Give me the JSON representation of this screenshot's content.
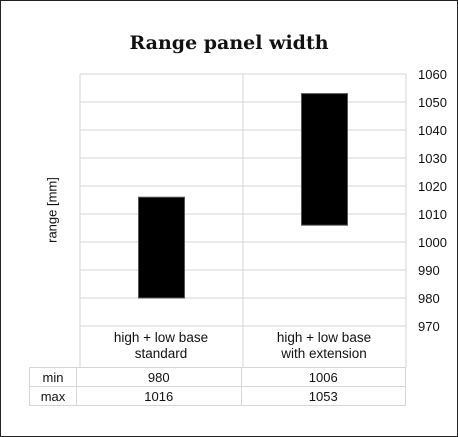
{
  "chart_data": {
    "type": "floating-bar",
    "title": "Range panel width",
    "ylabel": "range [mm]",
    "ylim": [
      970,
      1060
    ],
    "yticks": [
      970,
      980,
      990,
      1000,
      1010,
      1020,
      1030,
      1040,
      1050,
      1060
    ],
    "grid": true,
    "y_axis_side": "right",
    "bar_color": "#000000",
    "categories": [
      {
        "label_line1": "high + low base",
        "label_line2": "standard",
        "min": 980,
        "max": 1016
      },
      {
        "label_line1": "high + low base",
        "label_line2": "with extension",
        "min": 1006,
        "max": 1053
      }
    ],
    "table": {
      "rows": [
        {
          "label": "min",
          "values": [
            "980",
            "1006"
          ]
        },
        {
          "label": "max",
          "values": [
            "1016",
            "1053"
          ]
        }
      ]
    }
  }
}
